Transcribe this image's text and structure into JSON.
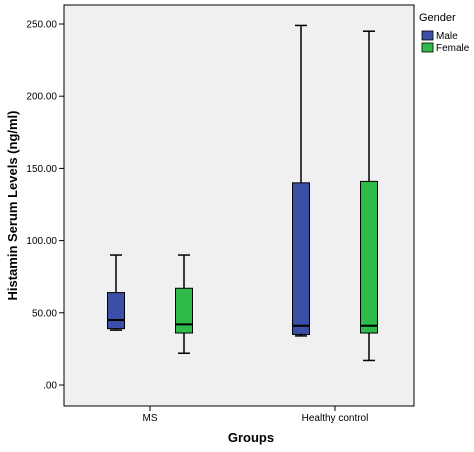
{
  "chart_data": {
    "type": "boxplot",
    "xlabel": "Groups",
    "ylabel": "Histamin Serum Levels (ng/ml)",
    "ylim": [
      0,
      260
    ],
    "yticks": [
      0,
      50,
      100,
      150,
      200,
      250
    ],
    "ytick_labels": [
      ".00",
      "50.00",
      "100.00",
      "150.00",
      "200.00",
      "250.00"
    ],
    "categories": [
      "MS",
      "Healthy control"
    ],
    "legend": {
      "title": "Gender",
      "position": "right",
      "items": [
        {
          "name": "Male",
          "color": "#3a4fa5"
        },
        {
          "name": "Female",
          "color": "#2fba4a"
        }
      ]
    },
    "plot_background": "#f0f0f0",
    "series": [
      {
        "name": "Male",
        "color": "#3a4fa5",
        "boxes": [
          {
            "min": 38,
            "q1": 39,
            "median": 45,
            "q3": 64,
            "max": 90
          },
          {
            "min": 34,
            "q1": 35,
            "median": 41,
            "q3": 140,
            "max": 249
          }
        ]
      },
      {
        "name": "Female",
        "color": "#2fba4a",
        "boxes": [
          {
            "min": 22,
            "q1": 36,
            "median": 42,
            "q3": 67,
            "max": 90
          },
          {
            "min": 17,
            "q1": 36,
            "median": 41,
            "q3": 141,
            "max": 245
          }
        ]
      }
    ]
  }
}
